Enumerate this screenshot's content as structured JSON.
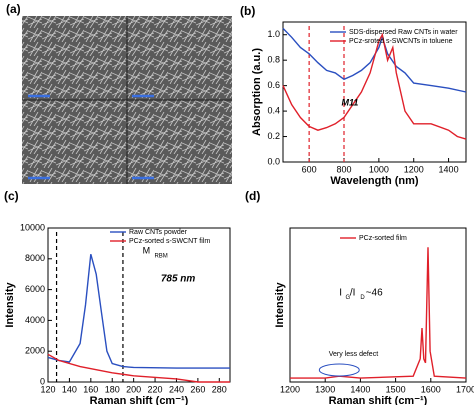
{
  "panel_a": {
    "label": "(a)"
  },
  "chart_data": [
    {
      "type": "line",
      "panel_label": "(b)",
      "xlabel": "Wavelength (nm)",
      "ylabel": "Absorption (a.u.)",
      "xlim": [
        450,
        1500
      ],
      "ylim": [
        0,
        1.1
      ],
      "xticks": [
        600,
        800,
        1000,
        1200,
        1400
      ],
      "yticks": [
        {
          "value": 0,
          "label": "0.0"
        },
        0.2,
        0.4,
        0.6,
        0.8,
        {
          "value": 1,
          "label": "1.0"
        }
      ],
      "vlines": [
        600,
        800
      ],
      "annotations": [
        "M11"
      ],
      "series": [
        {
          "name": "SDS-dispersed Raw CNTs in water",
          "color": "#2a4fc0",
          "x": [
            450,
            500,
            550,
            600,
            650,
            700,
            750,
            800,
            850,
            900,
            950,
            1000,
            1020,
            1050,
            1100,
            1150,
            1200,
            1300,
            1400,
            1500
          ],
          "values": [
            1.05,
            0.98,
            0.9,
            0.85,
            0.78,
            0.72,
            0.7,
            0.65,
            0.68,
            0.72,
            0.78,
            0.9,
            0.98,
            0.85,
            0.75,
            0.7,
            0.62,
            0.6,
            0.58,
            0.55
          ]
        },
        {
          "name": "PCz-sroted s-SWCNTs in toluene",
          "color": "#e0202a",
          "x": [
            450,
            500,
            550,
            600,
            650,
            700,
            750,
            800,
            850,
            900,
            950,
            1000,
            1020,
            1050,
            1080,
            1100,
            1150,
            1200,
            1300,
            1400,
            1450,
            1500
          ],
          "values": [
            0.6,
            0.45,
            0.35,
            0.28,
            0.25,
            0.27,
            0.3,
            0.35,
            0.45,
            0.55,
            0.7,
            0.95,
            1.0,
            0.8,
            0.9,
            0.7,
            0.4,
            0.3,
            0.3,
            0.25,
            0.2,
            0.18
          ]
        }
      ]
    },
    {
      "type": "line",
      "panel_label": "(c)",
      "xlabel": "Raman shift (cm⁻¹)",
      "ylabel": "Intensity",
      "xlim": [
        120,
        290
      ],
      "ylim": [
        0,
        10000
      ],
      "xticks": [
        120,
        140,
        160,
        180,
        200,
        220,
        240,
        260,
        280
      ],
      "yticks": [
        0,
        2000,
        4000,
        6000,
        8000,
        10000
      ],
      "vlines": [
        128,
        190
      ],
      "annotations": [
        "M",
        "RBM",
        "785 nm"
      ],
      "series": [
        {
          "name": "Raw CNTs powder",
          "color": "#2a4fc0",
          "x": [
            120,
            130,
            140,
            150,
            155,
            160,
            165,
            170,
            175,
            180,
            190,
            200,
            240,
            290
          ],
          "values": [
            1600,
            1400,
            1300,
            2500,
            5000,
            8300,
            7000,
            4500,
            2000,
            1200,
            1000,
            950,
            900,
            900
          ]
        },
        {
          "name": "PCz-sorted s-SWCNT film",
          "color": "#e0202a",
          "x": [
            120,
            130,
            150,
            180,
            200,
            240,
            260,
            290
          ],
          "values": [
            1800,
            1400,
            1000,
            600,
            400,
            200,
            0,
            0
          ]
        }
      ]
    },
    {
      "type": "line",
      "panel_label": "(d)",
      "xlabel": "Raman shift (cm⁻¹)",
      "ylabel": "Intensity",
      "xlim": [
        1200,
        1700
      ],
      "ylim": [
        0,
        4000
      ],
      "xticks": [
        1200,
        1300,
        1400,
        1500,
        1600,
        1700
      ],
      "vlines": [],
      "annotations": [
        "I",
        "G",
        "/I",
        "D",
        "~46",
        "Very less defect"
      ],
      "series": [
        {
          "name": "PCz-sorted film",
          "color": "#e0202a",
          "x": [
            1200,
            1300,
            1340,
            1400,
            1550,
            1570,
            1575,
            1580,
            1585,
            1592,
            1598,
            1610,
            1700
          ],
          "values": [
            100,
            100,
            150,
            100,
            150,
            600,
            1400,
            600,
            500,
            3500,
            800,
            150,
            100
          ]
        }
      ]
    }
  ]
}
